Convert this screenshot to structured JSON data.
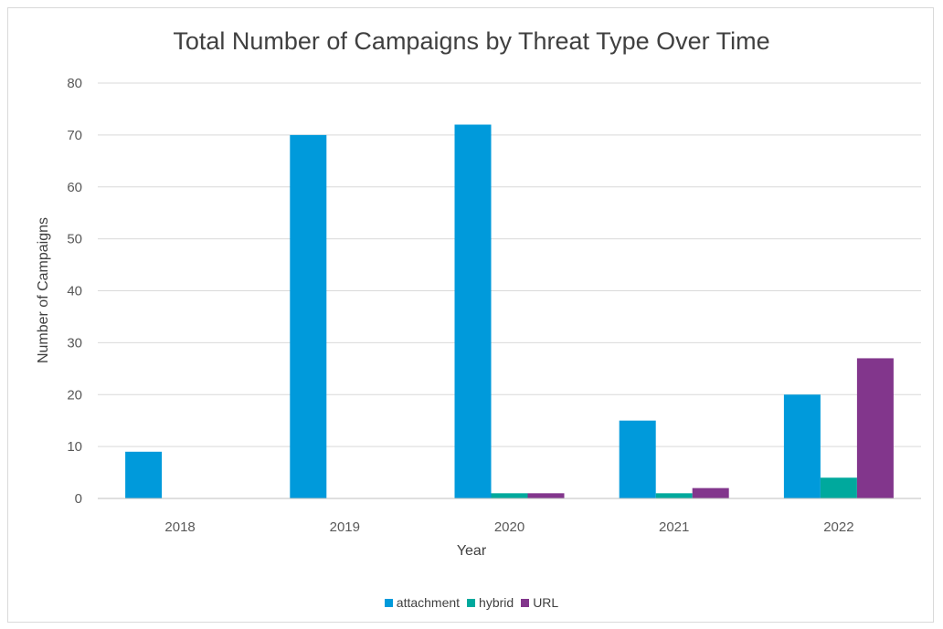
{
  "chart_data": {
    "type": "bar",
    "title": "Total Number of Campaigns by Threat Type Over Time",
    "xlabel": "Year",
    "ylabel": "Number of Campaigns",
    "categories": [
      "2018",
      "2019",
      "2020",
      "2021",
      "2022"
    ],
    "series": [
      {
        "name": "attachment",
        "color": "#009ADB",
        "values": [
          9,
          70,
          72,
          15,
          20
        ]
      },
      {
        "name": "hybrid",
        "color": "#00A99D",
        "values": [
          0,
          0,
          1,
          1,
          4
        ]
      },
      {
        "name": "URL",
        "color": "#82368C",
        "values": [
          0,
          0,
          1,
          2,
          27
        ]
      }
    ],
    "ylim": [
      0,
      80
    ],
    "yticks": [
      "0",
      "10",
      "20",
      "30",
      "40",
      "50",
      "60",
      "70",
      "80"
    ],
    "grid": true,
    "legend_position": "bottom"
  }
}
